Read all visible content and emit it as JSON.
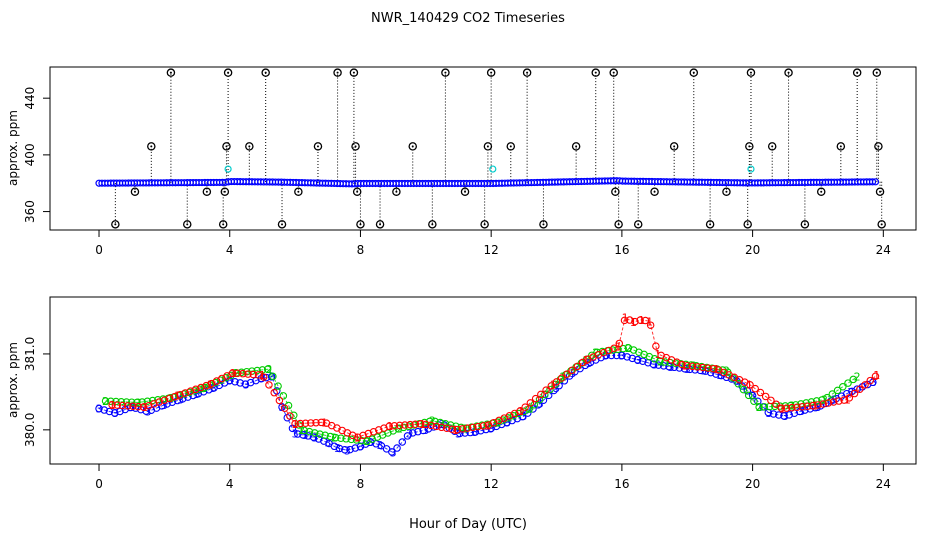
{
  "title": "NWR_140429  CO2 Timeseries",
  "xlabel": "Hour of Day (UTC)",
  "chart_data": [
    {
      "type": "scatter",
      "ylabel": "approx. ppm",
      "xlim": [
        -1.5,
        25
      ],
      "ylim": [
        347,
        462
      ],
      "xticks": [
        0,
        4,
        8,
        12,
        16,
        20,
        24
      ],
      "yticks": [
        360,
        400,
        440
      ],
      "colors": {
        "baseline": "#0000ff",
        "spikes": "#000000",
        "flag": "#00cccc"
      },
      "baseline": {
        "name": "",
        "x": [
          0.0,
          2.0,
          3.9,
          4.0,
          5.5,
          7.8,
          7.9,
          12.0,
          15.9,
          16.0,
          19.9,
          20.0,
          23.8
        ],
        "y": [
          380.0,
          380.3,
          380.6,
          381.2,
          380.8,
          379.5,
          379.8,
          379.8,
          381.8,
          381.5,
          380.2,
          380.2,
          381.0
        ]
      },
      "spikes": {
        "name": "",
        "x": [
          0.5,
          1.1,
          1.6,
          2.2,
          2.7,
          3.3,
          3.8,
          3.85,
          3.9,
          3.95,
          4.6,
          5.1,
          5.6,
          6.1,
          6.7,
          7.3,
          7.8,
          7.85,
          7.9,
          8.0,
          8.6,
          9.1,
          9.6,
          10.2,
          10.6,
          11.2,
          11.8,
          11.9,
          12.0,
          12.6,
          13.1,
          13.6,
          14.6,
          15.2,
          15.75,
          15.8,
          15.9,
          16.5,
          17.0,
          17.6,
          18.2,
          18.7,
          19.2,
          19.85,
          19.9,
          19.95,
          20.6,
          21.1,
          21.6,
          22.1,
          22.7,
          23.2,
          23.8,
          23.85,
          23.9,
          23.95
        ],
        "y": [
          351,
          374,
          406,
          458,
          351,
          374,
          351,
          374,
          406,
          458,
          406,
          458,
          351,
          374,
          406,
          458,
          458,
          406,
          374,
          351,
          351,
          374,
          406,
          351,
          458,
          374,
          351,
          406,
          458,
          406,
          458,
          351,
          406,
          458,
          458,
          374,
          351,
          351,
          374,
          406,
          458,
          351,
          374,
          351,
          406,
          458,
          406,
          458,
          351,
          374,
          406,
          458,
          458,
          406,
          374,
          351
        ]
      },
      "flags": {
        "name": "",
        "x": [
          3.95,
          12.05,
          19.95
        ],
        "y": [
          390,
          390,
          390
        ]
      }
    },
    {
      "type": "scatter",
      "ylabel": "approx. ppm",
      "xlim": [
        -1.5,
        25
      ],
      "ylim": [
        379.55,
        381.75
      ],
      "xticks": [
        0,
        4,
        8,
        12,
        16,
        20,
        24
      ],
      "yticks": [
        380.0,
        381.0
      ],
      "colors": {
        "green": "#00cc00",
        "blue": "#0000ff",
        "red": "#ff0000"
      },
      "series": [
        {
          "name": "",
          "symbol": "3",
          "color": "#0000ff",
          "x": [
            0,
            0.5,
            1,
            1.5,
            2,
            2.5,
            3,
            3.5,
            4,
            4.5,
            5,
            5.3,
            5.6,
            6,
            6.3,
            6.6,
            7,
            7.3,
            7.6,
            8,
            8.3,
            8.6,
            9,
            9.5,
            10,
            10.5,
            11,
            11.5,
            12,
            12.5,
            13,
            13.5,
            14,
            14.5,
            15,
            15.5,
            16,
            16.5,
            17,
            17.5,
            18,
            18.5,
            19,
            19.5,
            20,
            20.5,
            21,
            21.5,
            22,
            22.5,
            23,
            23.7
          ],
          "y": [
            380.28,
            380.22,
            380.3,
            380.24,
            380.33,
            380.4,
            380.47,
            380.55,
            380.65,
            380.6,
            380.68,
            380.7,
            380.3,
            379.95,
            379.93,
            379.9,
            379.83,
            379.76,
            379.73,
            379.78,
            379.84,
            379.8,
            379.7,
            379.95,
            380.0,
            380.08,
            379.95,
            379.97,
            380.02,
            380.1,
            380.18,
            380.35,
            380.55,
            380.75,
            380.88,
            380.98,
            380.98,
            380.92,
            380.86,
            380.83,
            380.8,
            380.78,
            380.72,
            380.65,
            380.45,
            380.22,
            380.18,
            380.25,
            380.3,
            380.4,
            380.5,
            380.63
          ]
        },
        {
          "name": "",
          "symbol": "2",
          "color": "#00cc00",
          "x": [
            0.2,
            1.2,
            2.2,
            3.2,
            4.2,
            5.2,
            6.2,
            7.2,
            8.2,
            9.2,
            10.2,
            11.2,
            12.2,
            13.2,
            14.2,
            15.2,
            16.2,
            17.2,
            18.2,
            19.2,
            20.2,
            21.2,
            22.2,
            23.2
          ],
          "y": [
            380.38,
            380.36,
            380.42,
            380.55,
            380.75,
            380.8,
            380.0,
            379.9,
            379.85,
            380.02,
            380.12,
            380.02,
            380.1,
            380.28,
            380.7,
            381.02,
            381.08,
            380.9,
            380.85,
            380.78,
            380.3,
            380.32,
            380.4,
            380.7
          ]
        },
        {
          "name": "",
          "symbol": "1",
          "color": "#ff0000",
          "x": [
            0.4,
            1.4,
            2.4,
            3.4,
            4.1,
            5.0,
            6.0,
            6.9,
            7.9,
            8.9,
            9.9,
            10.9,
            11.9,
            12.9,
            13.9,
            14.9,
            15.9,
            16.1,
            16.35,
            16.6,
            16.85,
            17.1,
            17.9,
            18.9,
            19.9,
            20.9,
            21.9,
            22.9,
            23.8
          ],
          "y": [
            380.33,
            380.3,
            380.45,
            380.6,
            380.75,
            380.72,
            380.08,
            380.1,
            379.9,
            380.05,
            380.08,
            380.0,
            380.06,
            380.25,
            380.6,
            380.92,
            381.1,
            381.48,
            381.42,
            381.45,
            381.43,
            381.0,
            380.85,
            380.8,
            380.6,
            380.28,
            380.32,
            380.4,
            380.72
          ]
        }
      ]
    }
  ]
}
